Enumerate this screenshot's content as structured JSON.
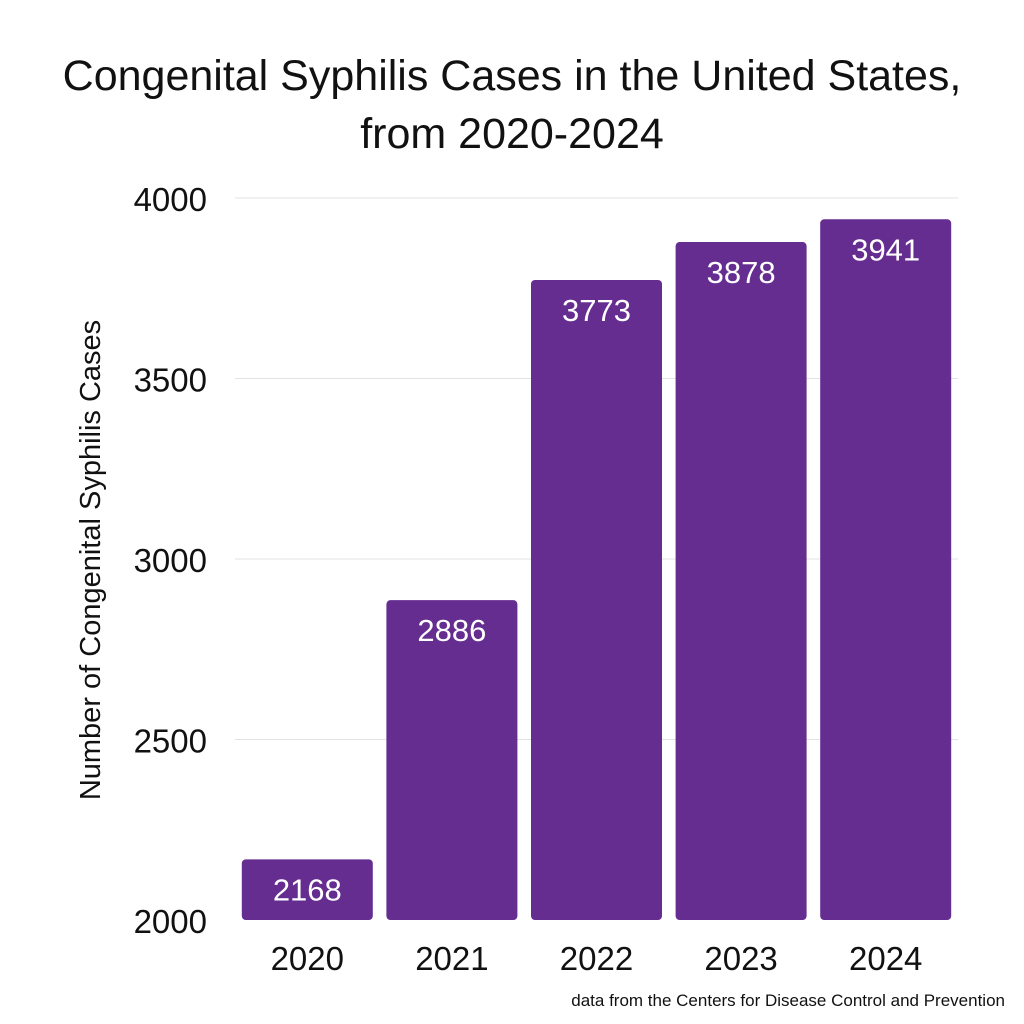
{
  "chart_data": {
    "type": "bar",
    "title_lines": [
      "Congenital Syphilis Cases in the United States,",
      "from 2020-2024"
    ],
    "categories": [
      "2020",
      "2021",
      "2022",
      "2023",
      "2024"
    ],
    "values": [
      2168,
      2886,
      3773,
      3878,
      3941
    ],
    "value_labels": [
      "2168",
      "2886",
      "3773",
      "3878",
      "3941"
    ],
    "xlabel": "",
    "ylabel": "Number of Congenital Syphilis Cases",
    "ylim": [
      2000,
      4000
    ],
    "yticks": [
      2000,
      2500,
      3000,
      3500,
      4000
    ],
    "ytick_labels": [
      "2000",
      "2500",
      "3000",
      "3500",
      "4000"
    ],
    "grid": true,
    "source": "data from the Centers for Disease Control and Prevention"
  },
  "colors": {
    "bar": "#662d91",
    "bar_label": "#ffffff",
    "grid": "#e3e3e3",
    "text": "#111111",
    "background": "#ffffff"
  }
}
